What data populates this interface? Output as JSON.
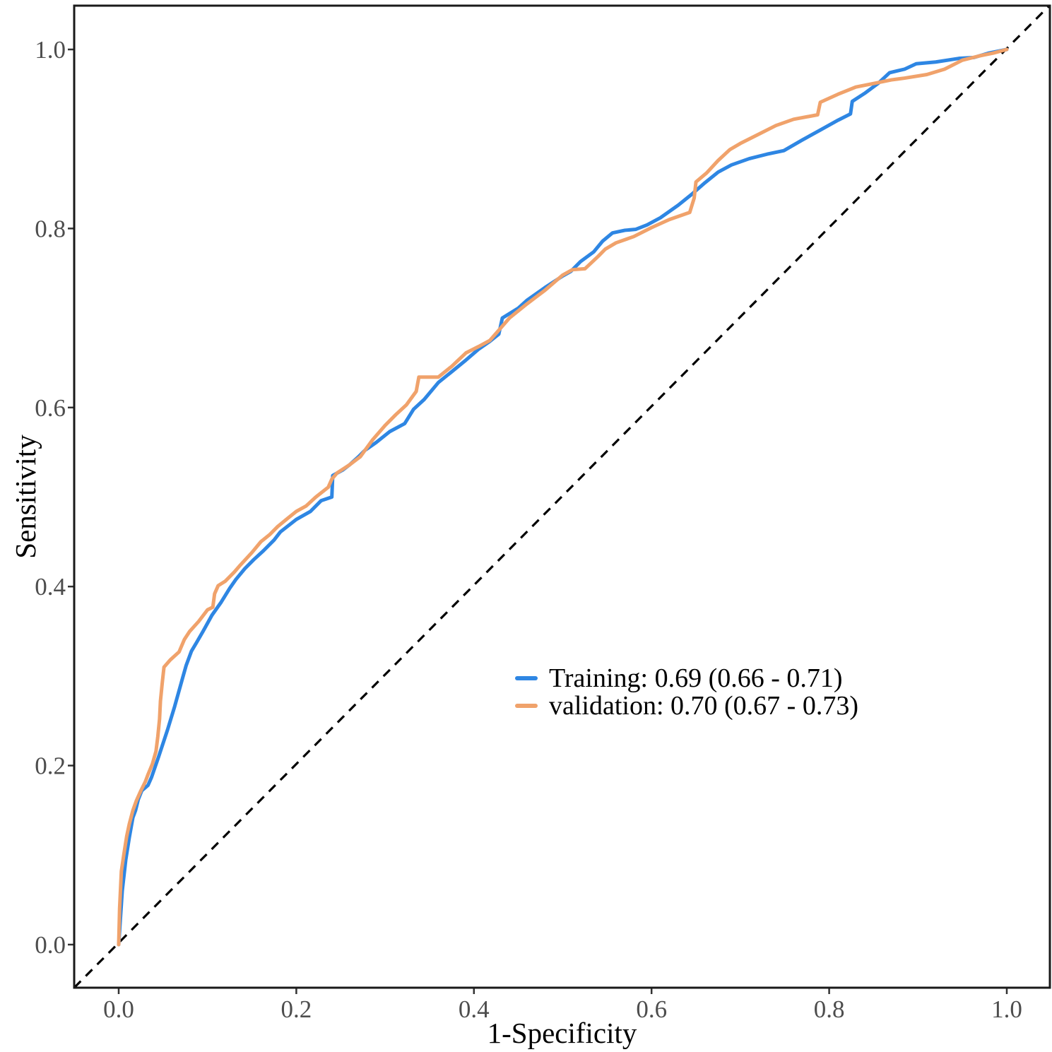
{
  "figure": {
    "background": "#ffffff",
    "panel_border_color": "#1a1a1a",
    "tick_color": "#333333",
    "tick_label_color": "#4d4d4d",
    "axis_title_color": "#000000"
  },
  "chart_data": {
    "type": "line",
    "subtype": "roc-curve",
    "title": "",
    "xlabel": "1-Specificity",
    "ylabel": "Sensitivity",
    "xlim": [
      0,
      1
    ],
    "ylim": [
      0,
      1
    ],
    "grid": false,
    "x_ticks": {
      "values": [
        0,
        0.2,
        0.4,
        0.6,
        0.8,
        1.0
      ],
      "labels": [
        "0.0",
        "0.2",
        "0.4",
        "0.6",
        "0.8",
        "1.0"
      ]
    },
    "y_ticks": {
      "values": [
        0,
        0.2,
        0.4,
        0.6,
        0.8,
        1.0
      ],
      "labels": [
        "0.0",
        "0.2",
        "0.4",
        "0.6",
        "0.8",
        "1.0"
      ]
    },
    "legend_position": "inside-center-right",
    "reference_line": {
      "style": "dashed",
      "color": "#000000",
      "from": [
        -0.05,
        -0.048
      ],
      "to": [
        1.047,
        1.048
      ]
    },
    "series": [
      {
        "name": "Training",
        "auc": 0.69,
        "ci": [
          0.66,
          0.71
        ],
        "legend_label": "Training: 0.69 (0.66 - 0.71)",
        "color": "#2e86e3",
        "points": [
          [
            0,
            0
          ],
          [
            0.002,
            0.03
          ],
          [
            0.004,
            0.06
          ],
          [
            0.008,
            0.095
          ],
          [
            0.012,
            0.12
          ],
          [
            0.016,
            0.142
          ],
          [
            0.019,
            0.15
          ],
          [
            0.022,
            0.162
          ],
          [
            0.026,
            0.172
          ],
          [
            0.033,
            0.178
          ],
          [
            0.037,
            0.187
          ],
          [
            0.045,
            0.21
          ],
          [
            0.055,
            0.24
          ],
          [
            0.063,
            0.266
          ],
          [
            0.072,
            0.298
          ],
          [
            0.076,
            0.312
          ],
          [
            0.082,
            0.328
          ],
          [
            0.088,
            0.338
          ],
          [
            0.095,
            0.35
          ],
          [
            0.105,
            0.368
          ],
          [
            0.115,
            0.382
          ],
          [
            0.125,
            0.398
          ],
          [
            0.132,
            0.408
          ],
          [
            0.142,
            0.42
          ],
          [
            0.152,
            0.43
          ],
          [
            0.163,
            0.44
          ],
          [
            0.175,
            0.452
          ],
          [
            0.182,
            0.461
          ],
          [
            0.2,
            0.475
          ],
          [
            0.216,
            0.484
          ],
          [
            0.228,
            0.496
          ],
          [
            0.24,
            0.5
          ],
          [
            0.241,
            0.524
          ],
          [
            0.252,
            0.53
          ],
          [
            0.26,
            0.536
          ],
          [
            0.27,
            0.545
          ],
          [
            0.277,
            0.552
          ],
          [
            0.29,
            0.561
          ],
          [
            0.305,
            0.573
          ],
          [
            0.322,
            0.582
          ],
          [
            0.332,
            0.598
          ],
          [
            0.344,
            0.609
          ],
          [
            0.36,
            0.628
          ],
          [
            0.375,
            0.64
          ],
          [
            0.391,
            0.653
          ],
          [
            0.405,
            0.665
          ],
          [
            0.418,
            0.674
          ],
          [
            0.428,
            0.682
          ],
          [
            0.432,
            0.7
          ],
          [
            0.45,
            0.711
          ],
          [
            0.46,
            0.72
          ],
          [
            0.48,
            0.734
          ],
          [
            0.5,
            0.747
          ],
          [
            0.509,
            0.752
          ],
          [
            0.52,
            0.763
          ],
          [
            0.535,
            0.774
          ],
          [
            0.545,
            0.786
          ],
          [
            0.556,
            0.795
          ],
          [
            0.57,
            0.798
          ],
          [
            0.582,
            0.799
          ],
          [
            0.595,
            0.804
          ],
          [
            0.61,
            0.812
          ],
          [
            0.63,
            0.826
          ],
          [
            0.645,
            0.838
          ],
          [
            0.66,
            0.851
          ],
          [
            0.675,
            0.863
          ],
          [
            0.69,
            0.871
          ],
          [
            0.71,
            0.878
          ],
          [
            0.73,
            0.883
          ],
          [
            0.749,
            0.887
          ],
          [
            0.77,
            0.899
          ],
          [
            0.79,
            0.91
          ],
          [
            0.81,
            0.921
          ],
          [
            0.824,
            0.928
          ],
          [
            0.826,
            0.942
          ],
          [
            0.84,
            0.951
          ],
          [
            0.855,
            0.962
          ],
          [
            0.868,
            0.974
          ],
          [
            0.885,
            0.978
          ],
          [
            0.898,
            0.984
          ],
          [
            0.92,
            0.986
          ],
          [
            0.946,
            0.99
          ],
          [
            0.963,
            0.991
          ],
          [
            0.98,
            0.996
          ],
          [
            1,
            1
          ]
        ]
      },
      {
        "name": "validation",
        "auc": 0.7,
        "ci": [
          0.67,
          0.73
        ],
        "legend_label": "validation: 0.70 (0.67 - 0.73)",
        "color": "#f0a26b",
        "points": [
          [
            0,
            0
          ],
          [
            0.001,
            0.04
          ],
          [
            0.003,
            0.082
          ],
          [
            0.006,
            0.102
          ],
          [
            0.009,
            0.121
          ],
          [
            0.012,
            0.135
          ],
          [
            0.016,
            0.15
          ],
          [
            0.02,
            0.161
          ],
          [
            0.025,
            0.172
          ],
          [
            0.03,
            0.182
          ],
          [
            0.033,
            0.19
          ],
          [
            0.038,
            0.202
          ],
          [
            0.042,
            0.216
          ],
          [
            0.044,
            0.232
          ],
          [
            0.046,
            0.252
          ],
          [
            0.047,
            0.272
          ],
          [
            0.049,
            0.292
          ],
          [
            0.051,
            0.31
          ],
          [
            0.058,
            0.318
          ],
          [
            0.068,
            0.327
          ],
          [
            0.074,
            0.341
          ],
          [
            0.08,
            0.35
          ],
          [
            0.09,
            0.361
          ],
          [
            0.1,
            0.374
          ],
          [
            0.106,
            0.377
          ],
          [
            0.108,
            0.392
          ],
          [
            0.112,
            0.401
          ],
          [
            0.12,
            0.406
          ],
          [
            0.13,
            0.416
          ],
          [
            0.137,
            0.424
          ],
          [
            0.15,
            0.438
          ],
          [
            0.16,
            0.45
          ],
          [
            0.17,
            0.458
          ],
          [
            0.179,
            0.467
          ],
          [
            0.19,
            0.476
          ],
          [
            0.2,
            0.484
          ],
          [
            0.211,
            0.49
          ],
          [
            0.222,
            0.5
          ],
          [
            0.236,
            0.511
          ],
          [
            0.24,
            0.52
          ],
          [
            0.246,
            0.527
          ],
          [
            0.26,
            0.536
          ],
          [
            0.272,
            0.545
          ],
          [
            0.286,
            0.564
          ],
          [
            0.3,
            0.58
          ],
          [
            0.312,
            0.592
          ],
          [
            0.324,
            0.603
          ],
          [
            0.335,
            0.618
          ],
          [
            0.338,
            0.634
          ],
          [
            0.36,
            0.634
          ],
          [
            0.375,
            0.646
          ],
          [
            0.391,
            0.661
          ],
          [
            0.405,
            0.668
          ],
          [
            0.418,
            0.675
          ],
          [
            0.44,
            0.7
          ],
          [
            0.46,
            0.716
          ],
          [
            0.48,
            0.731
          ],
          [
            0.5,
            0.748
          ],
          [
            0.511,
            0.754
          ],
          [
            0.525,
            0.755
          ],
          [
            0.54,
            0.769
          ],
          [
            0.548,
            0.777
          ],
          [
            0.56,
            0.784
          ],
          [
            0.58,
            0.791
          ],
          [
            0.6,
            0.801
          ],
          [
            0.62,
            0.81
          ],
          [
            0.643,
            0.818
          ],
          [
            0.648,
            0.834
          ],
          [
            0.65,
            0.852
          ],
          [
            0.662,
            0.862
          ],
          [
            0.675,
            0.876
          ],
          [
            0.688,
            0.888
          ],
          [
            0.7,
            0.895
          ],
          [
            0.72,
            0.905
          ],
          [
            0.74,
            0.915
          ],
          [
            0.76,
            0.922
          ],
          [
            0.787,
            0.927
          ],
          [
            0.79,
            0.941
          ],
          [
            0.81,
            0.95
          ],
          [
            0.83,
            0.958
          ],
          [
            0.85,
            0.962
          ],
          [
            0.87,
            0.966
          ],
          [
            0.885,
            0.968
          ],
          [
            0.91,
            0.972
          ],
          [
            0.93,
            0.978
          ],
          [
            0.95,
            0.988
          ],
          [
            0.97,
            0.993
          ],
          [
            0.985,
            0.996
          ],
          [
            1,
            1
          ]
        ]
      }
    ]
  }
}
